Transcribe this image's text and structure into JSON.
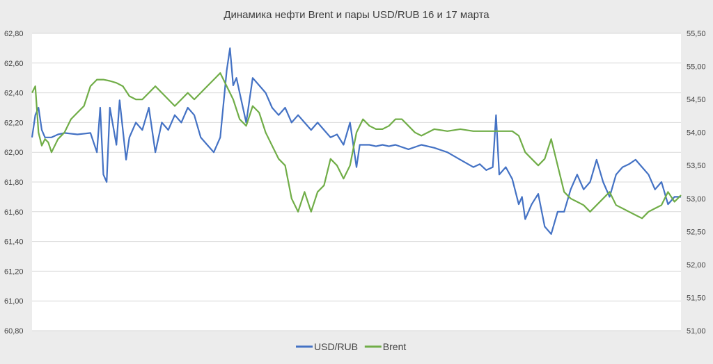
{
  "chart_data": {
    "type": "line",
    "title": "Динамика нефти Brent и пары USD/RUB 16 и 17 марта",
    "xlabel": "",
    "left_axis": {
      "label": "",
      "min": 60.8,
      "max": 62.8,
      "ticks": [
        "62,80",
        "62,60",
        "62,40",
        "62,20",
        "62,00",
        "61,80",
        "61,60",
        "61,40",
        "61,20",
        "61,00",
        "60,80"
      ],
      "tick_values": [
        62.8,
        62.6,
        62.4,
        62.2,
        62.0,
        61.8,
        61.6,
        61.4,
        61.2,
        61.0,
        60.8
      ]
    },
    "right_axis": {
      "label": "",
      "min": 51.0,
      "max": 55.5,
      "ticks": [
        "55,50",
        "55,00",
        "54,50",
        "54,00",
        "53,50",
        "53,00",
        "52,50",
        "52,00",
        "51,50",
        "51,00"
      ],
      "tick_values": [
        55.5,
        55.0,
        54.5,
        54.0,
        53.5,
        53.0,
        52.5,
        52.0,
        51.5,
        51.0
      ]
    },
    "grid": true,
    "legend_position": "bottom",
    "series": [
      {
        "name": "USD/RUB",
        "axis": "left",
        "color": "#4472c4",
        "x": [
          0,
          0.005,
          0.01,
          0.015,
          0.02,
          0.03,
          0.04,
          0.05,
          0.07,
          0.09,
          0.1,
          0.105,
          0.11,
          0.115,
          0.12,
          0.13,
          0.135,
          0.145,
          0.15,
          0.16,
          0.17,
          0.18,
          0.19,
          0.2,
          0.21,
          0.22,
          0.23,
          0.24,
          0.25,
          0.26,
          0.27,
          0.28,
          0.29,
          0.3,
          0.305,
          0.31,
          0.315,
          0.32,
          0.33,
          0.34,
          0.35,
          0.36,
          0.37,
          0.38,
          0.39,
          0.4,
          0.41,
          0.42,
          0.43,
          0.44,
          0.45,
          0.46,
          0.47,
          0.48,
          0.49,
          0.5,
          0.505,
          0.51,
          0.52,
          0.53,
          0.54,
          0.55,
          0.56,
          0.58,
          0.6,
          0.62,
          0.64,
          0.66,
          0.68,
          0.69,
          0.7,
          0.71,
          0.715,
          0.72,
          0.73,
          0.74,
          0.75,
          0.755,
          0.76,
          0.77,
          0.78,
          0.79,
          0.8,
          0.81,
          0.82,
          0.83,
          0.84,
          0.85,
          0.86,
          0.87,
          0.88,
          0.89,
          0.9,
          0.91,
          0.92,
          0.93,
          0.94,
          0.95,
          0.96,
          0.97,
          0.98,
          0.99,
          1.0
        ],
        "values": [
          62.1,
          62.25,
          62.3,
          62.15,
          62.1,
          62.1,
          62.12,
          62.13,
          62.12,
          62.13,
          62.0,
          62.3,
          61.85,
          61.8,
          62.3,
          62.05,
          62.35,
          61.95,
          62.1,
          62.2,
          62.15,
          62.3,
          62.0,
          62.2,
          62.15,
          62.25,
          62.2,
          62.3,
          62.25,
          62.1,
          62.05,
          62.0,
          62.1,
          62.55,
          62.7,
          62.45,
          62.5,
          62.4,
          62.2,
          62.5,
          62.45,
          62.4,
          62.3,
          62.25,
          62.3,
          62.2,
          62.25,
          62.2,
          62.15,
          62.2,
          62.15,
          62.1,
          62.12,
          62.05,
          62.2,
          61.9,
          62.05,
          62.05,
          62.05,
          62.04,
          62.05,
          62.04,
          62.05,
          62.02,
          62.05,
          62.03,
          62.0,
          61.95,
          61.9,
          61.92,
          61.88,
          61.9,
          62.25,
          61.85,
          61.9,
          61.82,
          61.65,
          61.7,
          61.55,
          61.65,
          61.72,
          61.5,
          61.45,
          61.6,
          61.6,
          61.75,
          61.85,
          61.75,
          61.8,
          61.95,
          61.8,
          61.7,
          61.85,
          61.9,
          61.92,
          61.95,
          61.9,
          61.85,
          61.75,
          61.8,
          61.65,
          61.7,
          61.7
        ]
      },
      {
        "name": "Brent",
        "axis": "right",
        "color": "#70ad47",
        "x": [
          0,
          0.005,
          0.01,
          0.015,
          0.02,
          0.025,
          0.03,
          0.04,
          0.05,
          0.06,
          0.07,
          0.08,
          0.09,
          0.1,
          0.11,
          0.12,
          0.13,
          0.14,
          0.15,
          0.16,
          0.17,
          0.18,
          0.19,
          0.2,
          0.21,
          0.22,
          0.23,
          0.24,
          0.25,
          0.26,
          0.27,
          0.28,
          0.29,
          0.3,
          0.31,
          0.32,
          0.33,
          0.34,
          0.35,
          0.36,
          0.37,
          0.38,
          0.39,
          0.4,
          0.41,
          0.42,
          0.43,
          0.44,
          0.45,
          0.46,
          0.47,
          0.48,
          0.49,
          0.5,
          0.51,
          0.52,
          0.53,
          0.54,
          0.55,
          0.56,
          0.57,
          0.58,
          0.59,
          0.6,
          0.62,
          0.64,
          0.66,
          0.68,
          0.7,
          0.72,
          0.74,
          0.75,
          0.76,
          0.77,
          0.78,
          0.79,
          0.8,
          0.81,
          0.82,
          0.83,
          0.84,
          0.85,
          0.86,
          0.87,
          0.88,
          0.89,
          0.9,
          0.91,
          0.92,
          0.93,
          0.94,
          0.95,
          0.96,
          0.97,
          0.98,
          0.99,
          1.0
        ],
        "values": [
          54.6,
          54.7,
          54.0,
          53.8,
          53.9,
          53.85,
          53.7,
          53.9,
          54.0,
          54.2,
          54.3,
          54.4,
          54.7,
          54.8,
          54.8,
          54.78,
          54.75,
          54.7,
          54.55,
          54.5,
          54.5,
          54.6,
          54.7,
          54.6,
          54.5,
          54.4,
          54.5,
          54.6,
          54.5,
          54.6,
          54.7,
          54.8,
          54.9,
          54.7,
          54.5,
          54.2,
          54.1,
          54.4,
          54.3,
          54.0,
          53.8,
          53.6,
          53.5,
          53.0,
          52.8,
          53.1,
          52.8,
          53.1,
          53.2,
          53.6,
          53.5,
          53.3,
          53.5,
          54.0,
          54.2,
          54.1,
          54.05,
          54.05,
          54.1,
          54.2,
          54.2,
          54.1,
          54.0,
          53.95,
          54.05,
          54.02,
          54.05,
          54.02,
          54.02,
          54.02,
          54.02,
          53.95,
          53.7,
          53.6,
          53.5,
          53.6,
          53.9,
          53.5,
          53.1,
          53.0,
          52.95,
          52.9,
          52.8,
          52.9,
          53.0,
          53.1,
          52.9,
          52.85,
          52.8,
          52.75,
          52.7,
          52.8,
          52.85,
          52.9,
          53.1,
          52.95,
          53.05
        ]
      }
    ]
  }
}
